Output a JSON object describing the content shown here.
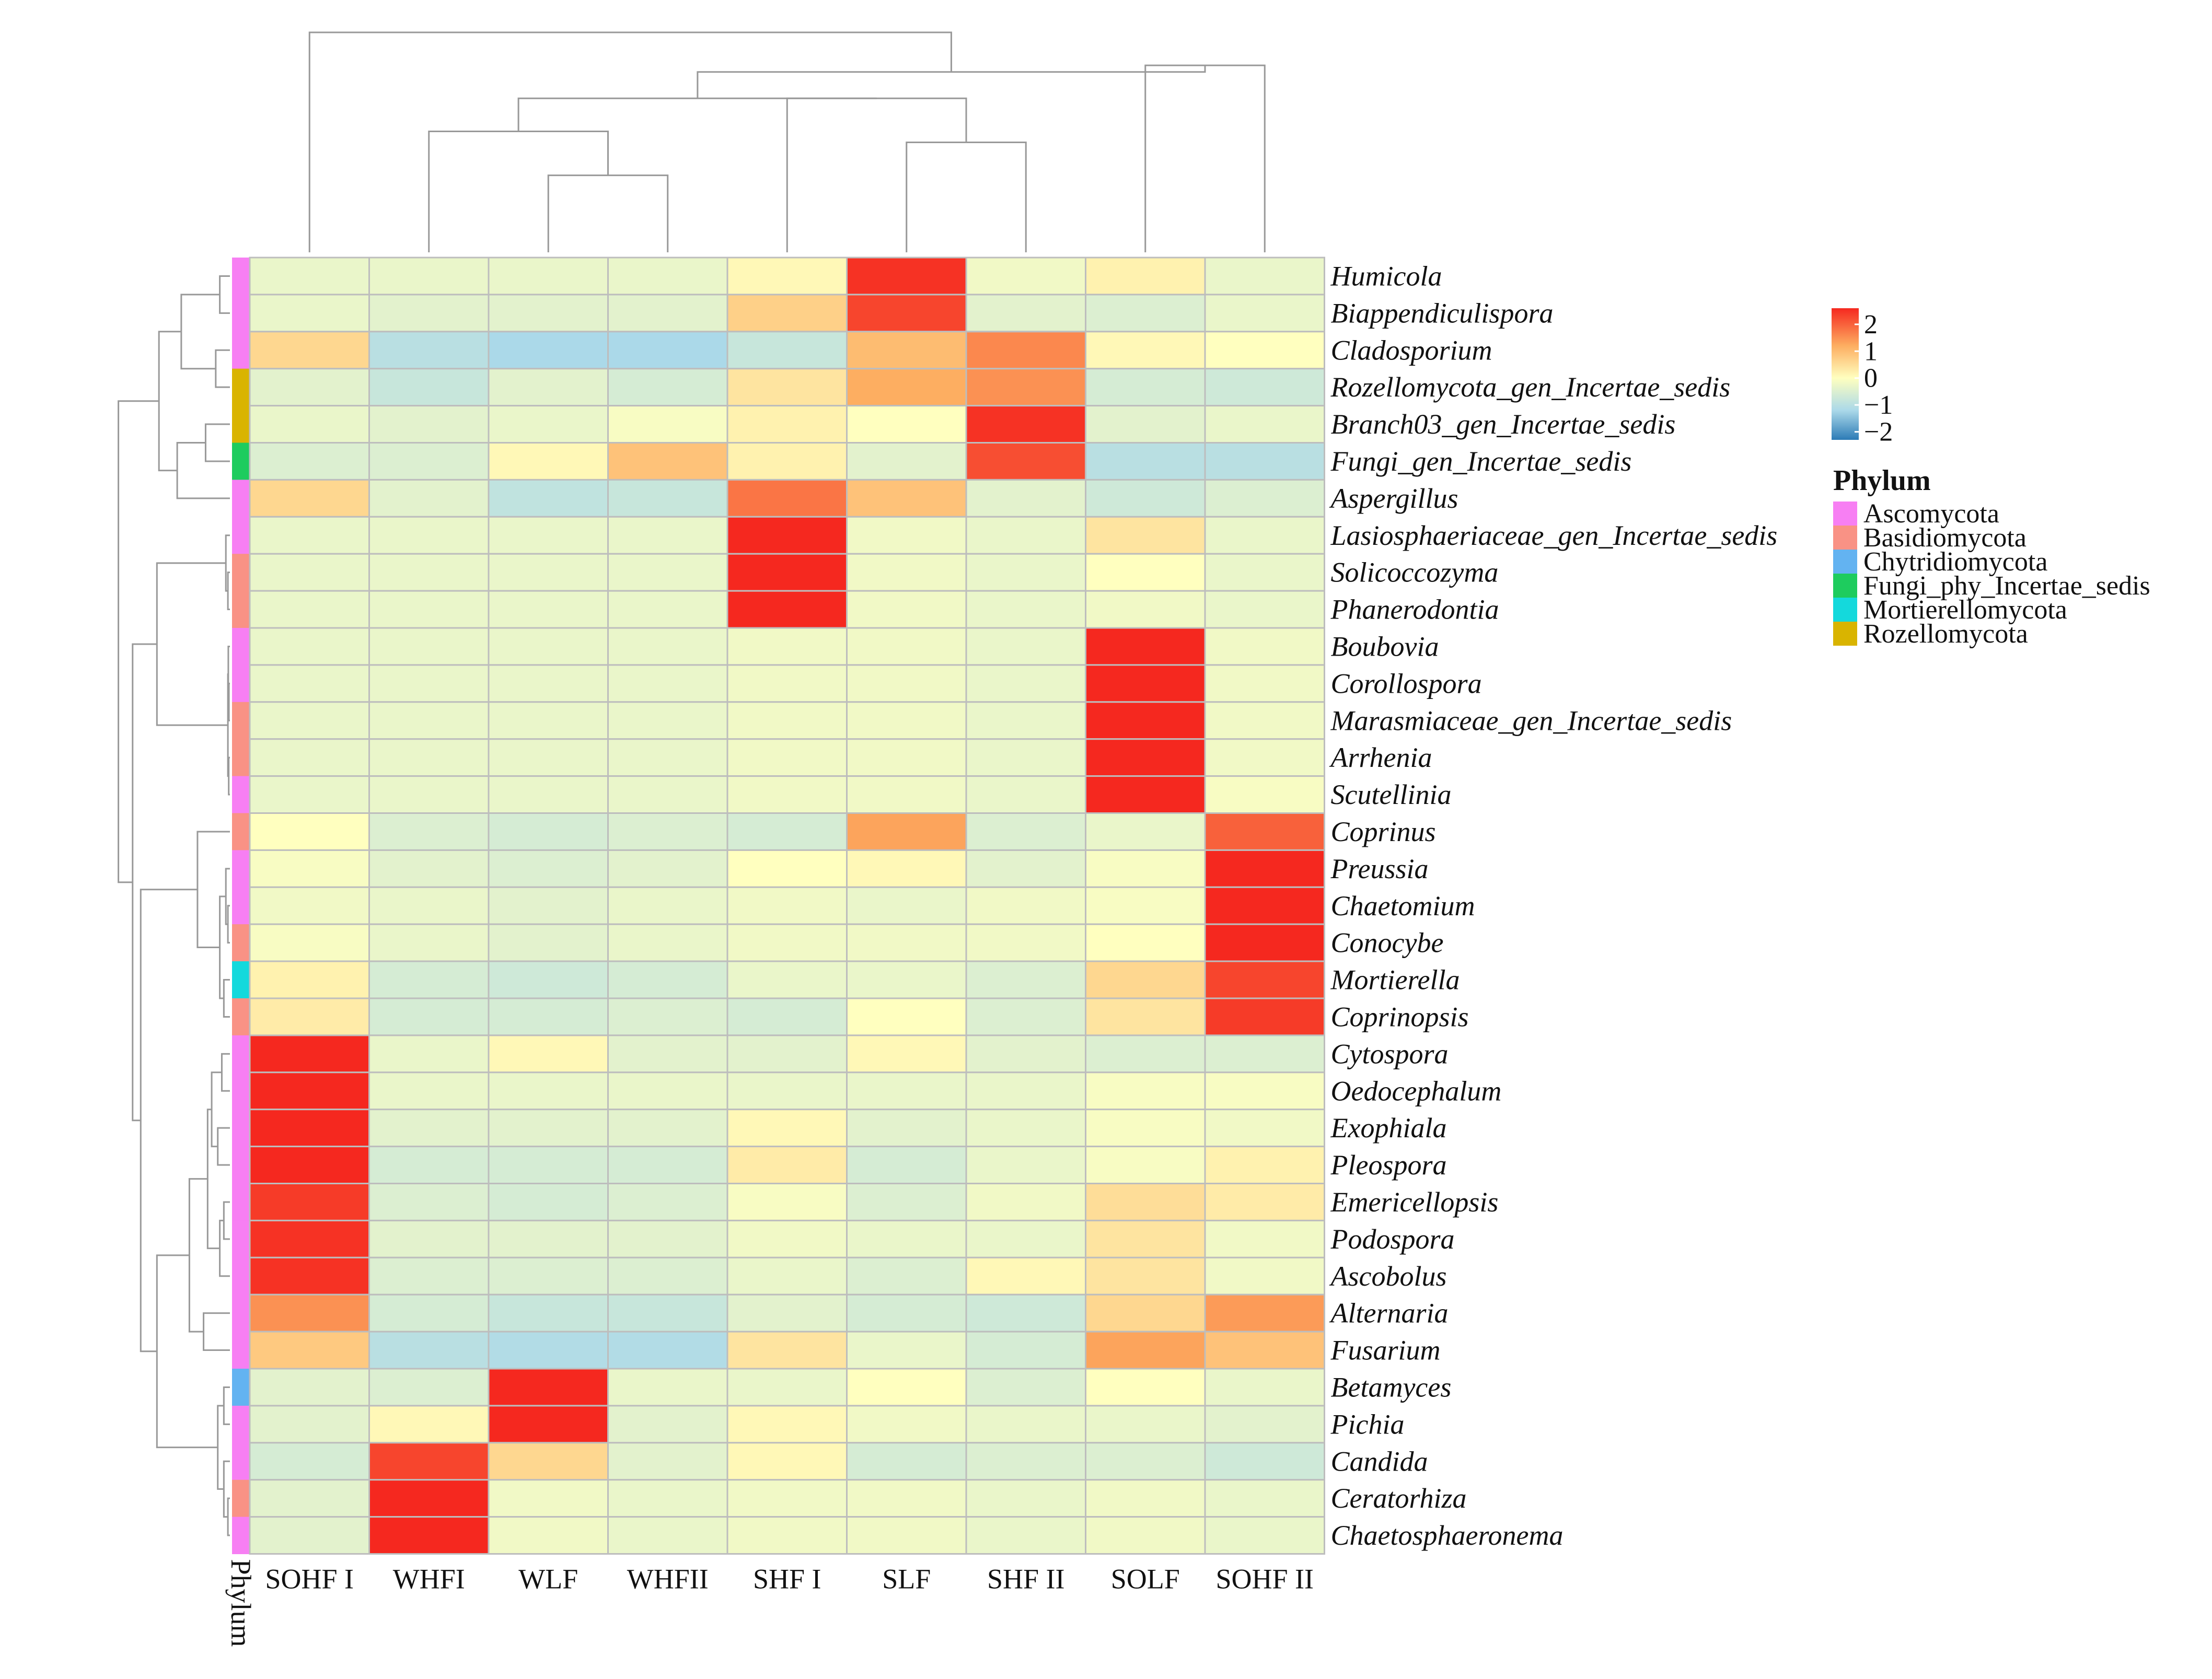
{
  "chart_data": {
    "type": "heatmap",
    "title": "",
    "columns": [
      "SOHF I",
      "WHFI",
      "WLF",
      "WHFII",
      "SHF I",
      "SLF",
      "SHF II",
      "SOLF",
      "SOHF II"
    ],
    "rows": [
      "Humicola",
      "Biappendiculispora",
      "Cladosporium",
      "Rozellomycota_gen_Incertae_sedis",
      "Branch03_gen_Incertae_sedis",
      "Fungi_gen_Incertae_sedis",
      "Aspergillus",
      "Lasiosphaeriaceae_gen_Incertae_sedis",
      "Solicoccozyma",
      "Phanerodontia",
      "Boubovia",
      "Corollospora",
      "Marasmiaceae_gen_Incertae_sedis",
      "Arrhenia",
      "Scutellinia",
      "Coprinus",
      "Preussia",
      "Chaetomium",
      "Conocybe",
      "Mortierella",
      "Coprinopsis",
      "Cytospora",
      "Oedocephalum",
      "Exophiala",
      "Pleospora",
      "Emericellopsis",
      "Podospora",
      "Ascobolus",
      "Alternaria",
      "Fusarium",
      "Betamyces",
      "Pichia",
      "Candida",
      "Ceratorhiza",
      "Chaetosphaeronema"
    ],
    "values": [
      [
        -0.3,
        -0.3,
        -0.3,
        -0.3,
        0.1,
        2.5,
        -0.2,
        0.2,
        -0.3
      ],
      [
        -0.3,
        -0.4,
        -0.4,
        -0.4,
        0.7,
        2.3,
        -0.4,
        -0.5,
        -0.3
      ],
      [
        0.6,
        -1.0,
        -1.2,
        -1.2,
        -0.8,
        1.0,
        1.6,
        0.1,
        0.0
      ],
      [
        -0.4,
        -0.8,
        -0.4,
        -0.6,
        0.4,
        1.2,
        1.5,
        -0.6,
        -0.7
      ],
      [
        -0.3,
        -0.4,
        -0.3,
        -0.1,
        0.2,
        0.0,
        2.5,
        -0.4,
        -0.3
      ],
      [
        -0.5,
        -0.5,
        0.1,
        0.9,
        0.2,
        -0.4,
        2.2,
        -1.0,
        -1.0
      ],
      [
        0.6,
        -0.4,
        -0.9,
        -0.8,
        1.8,
        0.9,
        -0.4,
        -0.7,
        -0.5
      ],
      [
        -0.3,
        -0.3,
        -0.3,
        -0.3,
        2.6,
        -0.2,
        -0.3,
        0.4,
        -0.3
      ],
      [
        -0.3,
        -0.3,
        -0.3,
        -0.3,
        2.6,
        -0.2,
        -0.3,
        0.0,
        -0.3
      ],
      [
        -0.3,
        -0.3,
        -0.3,
        -0.3,
        2.6,
        -0.2,
        -0.3,
        -0.2,
        -0.3
      ],
      [
        -0.3,
        -0.3,
        -0.3,
        -0.3,
        -0.2,
        -0.2,
        -0.3,
        2.6,
        -0.2
      ],
      [
        -0.3,
        -0.3,
        -0.3,
        -0.3,
        -0.2,
        -0.2,
        -0.3,
        2.6,
        -0.2
      ],
      [
        -0.3,
        -0.3,
        -0.3,
        -0.3,
        -0.2,
        -0.2,
        -0.3,
        2.6,
        -0.2
      ],
      [
        -0.3,
        -0.3,
        -0.3,
        -0.3,
        -0.2,
        -0.2,
        -0.3,
        2.6,
        -0.2
      ],
      [
        -0.3,
        -0.3,
        -0.3,
        -0.3,
        -0.2,
        -0.2,
        -0.3,
        2.6,
        -0.1
      ],
      [
        0.0,
        -0.5,
        -0.6,
        -0.5,
        -0.6,
        1.3,
        -0.5,
        -0.3,
        2.0
      ],
      [
        -0.1,
        -0.4,
        -0.5,
        -0.4,
        0.0,
        0.1,
        -0.4,
        -0.1,
        2.6
      ],
      [
        -0.2,
        -0.3,
        -0.4,
        -0.3,
        -0.2,
        -0.3,
        -0.2,
        -0.1,
        2.6
      ],
      [
        -0.1,
        -0.3,
        -0.4,
        -0.3,
        -0.2,
        -0.2,
        -0.2,
        0.0,
        2.6
      ],
      [
        0.2,
        -0.6,
        -0.7,
        -0.6,
        -0.3,
        -0.3,
        -0.5,
        0.6,
        2.3
      ],
      [
        0.3,
        -0.6,
        -0.6,
        -0.5,
        -0.6,
        0.0,
        -0.5,
        0.4,
        2.4
      ],
      [
        2.6,
        -0.3,
        0.1,
        -0.4,
        -0.4,
        0.1,
        -0.4,
        -0.5,
        -0.5
      ],
      [
        2.6,
        -0.3,
        -0.3,
        -0.3,
        -0.3,
        -0.3,
        -0.3,
        -0.1,
        -0.1
      ],
      [
        2.6,
        -0.4,
        -0.4,
        -0.4,
        0.1,
        -0.4,
        -0.3,
        -0.1,
        -0.2
      ],
      [
        2.6,
        -0.6,
        -0.6,
        -0.6,
        0.3,
        -0.6,
        -0.3,
        -0.1,
        0.2
      ],
      [
        2.4,
        -0.5,
        -0.6,
        -0.5,
        -0.1,
        -0.5,
        -0.2,
        0.5,
        0.3
      ],
      [
        2.5,
        -0.4,
        -0.4,
        -0.4,
        -0.2,
        -0.3,
        -0.3,
        0.4,
        -0.2
      ],
      [
        2.5,
        -0.5,
        -0.5,
        -0.5,
        -0.3,
        -0.5,
        0.1,
        0.4,
        -0.2
      ],
      [
        1.5,
        -0.6,
        -0.8,
        -0.8,
        -0.4,
        -0.6,
        -0.7,
        0.6,
        1.4
      ],
      [
        0.8,
        -1.0,
        -1.1,
        -1.1,
        0.4,
        -0.3,
        -0.6,
        1.3,
        0.9
      ],
      [
        -0.4,
        -0.5,
        2.6,
        -0.3,
        -0.3,
        0.0,
        -0.5,
        0.0,
        -0.3
      ],
      [
        -0.4,
        0.1,
        2.6,
        -0.4,
        0.1,
        -0.2,
        -0.3,
        -0.3,
        -0.4
      ],
      [
        -0.6,
        2.3,
        0.6,
        -0.4,
        0.1,
        -0.6,
        -0.5,
        -0.5,
        -0.7
      ],
      [
        -0.4,
        2.6,
        -0.2,
        -0.3,
        -0.2,
        -0.2,
        -0.3,
        -0.2,
        -0.3
      ],
      [
        -0.4,
        2.6,
        -0.2,
        -0.3,
        -0.2,
        -0.2,
        -0.3,
        -0.2,
        -0.3
      ]
    ],
    "phylum_track_label": "Phylum",
    "row_phylum": [
      "Ascomycota",
      "Ascomycota",
      "Ascomycota",
      "Rozellomycota",
      "Rozellomycota",
      "Fungi_phy_Incertae_sedis",
      "Ascomycota",
      "Ascomycota",
      "Basidiomycota",
      "Basidiomycota",
      "Ascomycota",
      "Ascomycota",
      "Basidiomycota",
      "Basidiomycota",
      "Ascomycota",
      "Basidiomycota",
      "Ascomycota",
      "Ascomycota",
      "Basidiomycota",
      "Mortierellomycota",
      "Basidiomycota",
      "Ascomycota",
      "Ascomycota",
      "Ascomycota",
      "Ascomycota",
      "Ascomycota",
      "Ascomycota",
      "Ascomycota",
      "Ascomycota",
      "Ascomycota",
      "Chytridiomycota",
      "Ascomycota",
      "Ascomycota",
      "Basidiomycota",
      "Ascomycota"
    ],
    "legend": {
      "title": "Phylum",
      "items": [
        {
          "name": "Ascomycota",
          "color": "#f77ff3"
        },
        {
          "name": "Basidiomycota",
          "color": "#f99285"
        },
        {
          "name": "Chytridiomycota",
          "color": "#63b3f1"
        },
        {
          "name": "Fungi_phy_Incertae_sedis",
          "color": "#1ecc5e"
        },
        {
          "name": "Mortierellomycota",
          "color": "#14d9dc"
        },
        {
          "name": "Rozellomycota",
          "color": "#d9b400"
        }
      ]
    },
    "color_scale": {
      "ticks": [
        "2",
        "1",
        "0",
        "−1",
        "−2"
      ],
      "tick_values": [
        2,
        1,
        0,
        -1,
        -2
      ],
      "range": [
        -2.3,
        2.6
      ],
      "stops": [
        {
          "value": -2.3,
          "color": "#2c7bb6"
        },
        {
          "value": -1.2,
          "color": "#abd9e9"
        },
        {
          "value": 0.0,
          "color": "#ffffbf"
        },
        {
          "value": 1.2,
          "color": "#fdae61"
        },
        {
          "value": 2.6,
          "color": "#f5281f"
        }
      ]
    },
    "column_dendrogram": {
      "leaves": [
        0,
        1,
        2,
        3,
        4,
        5,
        6,
        7,
        8
      ],
      "merges": [
        [
          2,
          3,
          0.35
        ],
        [
          5,
          6,
          0.5
        ],
        [
          1,
          9,
          0.55
        ],
        [
          4,
          10,
          0.7
        ],
        [
          7,
          8,
          0.85
        ],
        [
          11,
          12,
          0.7
        ],
        [
          14,
          13,
          0.82
        ],
        [
          0,
          15,
          1.0
        ]
      ]
    },
    "row_dendrogram": {
      "merges": [
        [
          0,
          1,
          0.05
        ],
        [
          2,
          3,
          0.07
        ],
        [
          35,
          36,
          0.24
        ],
        [
          4,
          5,
          0.12
        ],
        [
          38,
          6,
          0.26
        ],
        [
          37,
          39,
          0.35
        ],
        [
          8,
          9,
          0.01
        ],
        [
          7,
          41,
          0.02
        ],
        [
          11,
          12,
          0.005
        ],
        [
          10,
          43,
          0.008
        ],
        [
          13,
          14,
          0.006
        ],
        [
          44,
          45,
          0.01
        ],
        [
          17,
          18,
          0.01
        ],
        [
          16,
          47,
          0.02
        ],
        [
          19,
          20,
          0.03
        ],
        [
          48,
          49,
          0.05
        ],
        [
          15,
          50,
          0.16
        ],
        [
          21,
          22,
          0.04
        ],
        [
          23,
          24,
          0.06
        ],
        [
          52,
          53,
          0.09
        ],
        [
          25,
          26,
          0.03
        ],
        [
          55,
          27,
          0.05
        ],
        [
          54,
          56,
          0.11
        ],
        [
          28,
          29,
          0.13
        ],
        [
          57,
          58,
          0.2
        ],
        [
          33,
          34,
          0.01
        ],
        [
          32,
          60,
          0.03
        ],
        [
          30,
          31,
          0.03
        ],
        [
          62,
          61,
          0.06
        ],
        [
          59,
          63,
          0.36
        ],
        [
          42,
          46,
          0.36
        ],
        [
          51,
          64,
          0.44
        ],
        [
          65,
          66,
          0.48
        ],
        [
          40,
          67,
          0.55
        ]
      ]
    }
  }
}
